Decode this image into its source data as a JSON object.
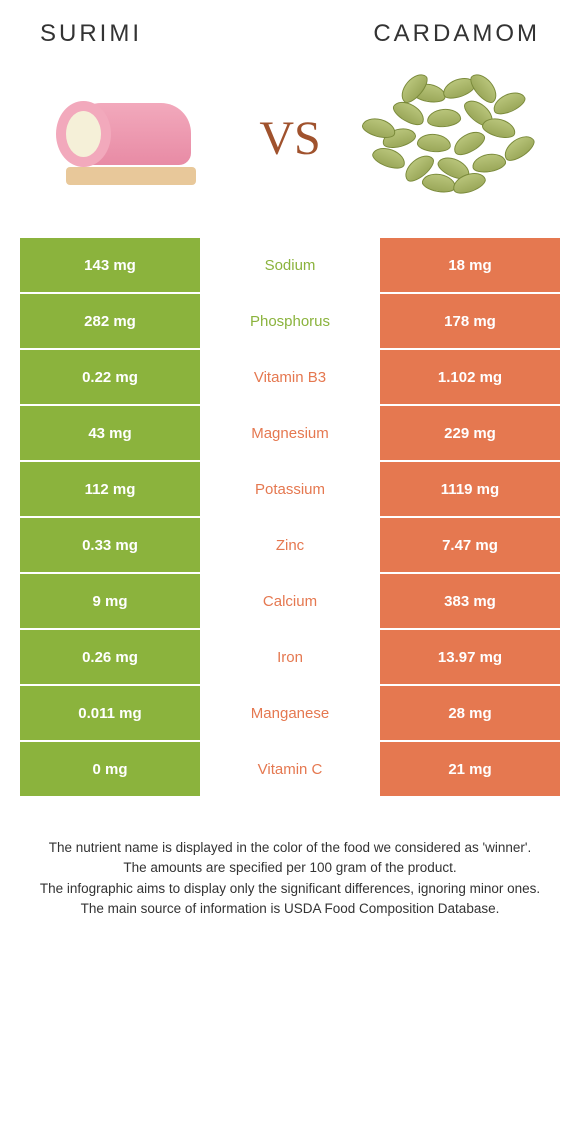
{
  "header": {
    "left_title": "Surimi",
    "right_title": "Cardamom"
  },
  "vs_label": "VS",
  "colors": {
    "left_bar": "#8bb33d",
    "right_bar": "#e57850",
    "green_text": "#8bb33d",
    "orange_text": "#e57850",
    "background": "#ffffff"
  },
  "table": {
    "rows": [
      {
        "left": "143 mg",
        "label": "Sodium",
        "right": "18 mg",
        "winner": "left"
      },
      {
        "left": "282 mg",
        "label": "Phosphorus",
        "right": "178 mg",
        "winner": "left"
      },
      {
        "left": "0.22 mg",
        "label": "Vitamin B3",
        "right": "1.102 mg",
        "winner": "right"
      },
      {
        "left": "43 mg",
        "label": "Magnesium",
        "right": "229 mg",
        "winner": "right"
      },
      {
        "left": "112 mg",
        "label": "Potassium",
        "right": "1119 mg",
        "winner": "right"
      },
      {
        "left": "0.33 mg",
        "label": "Zinc",
        "right": "7.47 mg",
        "winner": "right"
      },
      {
        "left": "9 mg",
        "label": "Calcium",
        "right": "383 mg",
        "winner": "right"
      },
      {
        "left": "0.26 mg",
        "label": "Iron",
        "right": "13.97 mg",
        "winner": "right"
      },
      {
        "left": "0.011 mg",
        "label": "Manganese",
        "right": "28 mg",
        "winner": "right"
      },
      {
        "left": "0 mg",
        "label": "Vitamin C",
        "right": "21 mg",
        "winner": "right"
      }
    ]
  },
  "footnotes": [
    "The nutrient name is displayed in the color of the food we considered as 'winner'.",
    "The amounts are specified per 100 gram of the product.",
    "The infographic aims to display only the significant differences, ignoring minor ones.",
    "The main source of information is USDA Food Composition Database."
  ]
}
